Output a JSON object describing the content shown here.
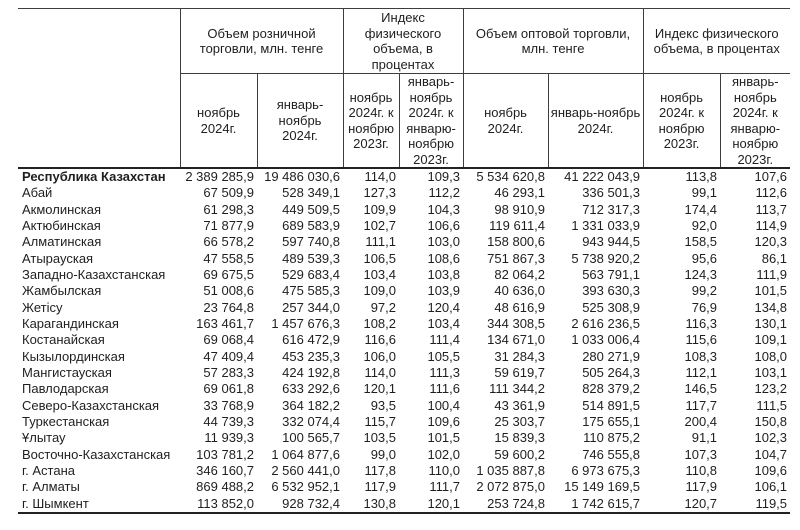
{
  "colors": {
    "text": "#1f1f1f",
    "border_thin": "#3d3d3d",
    "border_thick": "#222222",
    "background": "#ffffff"
  },
  "table": {
    "region_column_header": "",
    "groups": [
      {
        "label": "Объем розничной торговли, млн. тенге"
      },
      {
        "label": "Индекс физического объема, в процентах"
      },
      {
        "label": "Объем оптовой торговли, млн. тенге"
      },
      {
        "label": "Индекс физического объема, в процентах"
      }
    ],
    "subheaders": [
      "ноябрь 2024г.",
      "январь-ноябрь 2024г.",
      "ноябрь 2024г. к ноябрю 2023г.",
      "январь-ноябрь 2024г. к январю-ноябрю 2023г.",
      "ноябрь 2024г.",
      "январь-ноябрь 2024г.",
      "ноябрь 2024г. к ноябрю 2023г.",
      "январь-ноябрь 2024г. к январю-ноябрю 2023г."
    ],
    "rows": [
      {
        "region": "Республика Казахстан",
        "bold": true,
        "values": [
          "2 389 285,9",
          "19 486 030,6",
          "114,0",
          "109,3",
          "5 534 620,8",
          "41 222 043,9",
          "113,8",
          "107,6"
        ]
      },
      {
        "region": "Абай",
        "bold": false,
        "values": [
          "67 509,9",
          "528 349,1",
          "127,3",
          "112,2",
          "46 293,1",
          "336 501,3",
          "99,1",
          "112,6"
        ]
      },
      {
        "region": "Акмолинская",
        "bold": false,
        "values": [
          "61 298,3",
          "449 509,5",
          "109,9",
          "104,3",
          "98 910,9",
          "712 317,3",
          "174,4",
          "113,7"
        ]
      },
      {
        "region": "Актюбинская",
        "bold": false,
        "values": [
          "71 877,9",
          "689 583,9",
          "102,7",
          "106,6",
          "119 611,4",
          "1 331 033,9",
          "92,0",
          "114,9"
        ]
      },
      {
        "region": "Алматинская",
        "bold": false,
        "values": [
          "66 578,2",
          "597 740,8",
          "111,1",
          "103,0",
          "158 800,6",
          "943 944,5",
          "158,5",
          "120,3"
        ]
      },
      {
        "region": "Атырауская",
        "bold": false,
        "values": [
          "47 558,5",
          "489 539,3",
          "106,5",
          "108,6",
          "751 867,3",
          "5 738 920,2",
          "95,6",
          "86,1"
        ]
      },
      {
        "region": "Западно-Казахстанская",
        "bold": false,
        "values": [
          "69 675,5",
          "529 683,4",
          "103,4",
          "103,8",
          "82 064,2",
          "563 791,1",
          "124,3",
          "111,9"
        ]
      },
      {
        "region": "Жамбылская",
        "bold": false,
        "values": [
          "51 008,6",
          "475 585,3",
          "109,0",
          "103,9",
          "40 636,0",
          "393 630,3",
          "99,2",
          "101,5"
        ]
      },
      {
        "region": "Жетісу",
        "bold": false,
        "values": [
          "23 764,8",
          "257 344,0",
          "97,2",
          "120,4",
          "48 616,9",
          "525 308,9",
          "76,9",
          "134,8"
        ]
      },
      {
        "region": "Карагандинская",
        "bold": false,
        "values": [
          "163 461,7",
          "1 457 676,3",
          "108,2",
          "103,4",
          "344 308,5",
          "2 616 236,5",
          "116,3",
          "130,1"
        ]
      },
      {
        "region": "Костанайская",
        "bold": false,
        "values": [
          "69 068,4",
          "616 472,9",
          "116,6",
          "111,4",
          "134 671,0",
          "1 033 006,4",
          "115,6",
          "109,1"
        ]
      },
      {
        "region": "Кызылординская",
        "bold": false,
        "values": [
          "47 409,4",
          "453 235,3",
          "106,0",
          "105,5",
          "31 284,3",
          "280 271,9",
          "108,3",
          "108,0"
        ]
      },
      {
        "region": "Мангистауская",
        "bold": false,
        "values": [
          "57 283,3",
          "424 192,8",
          "114,0",
          "111,3",
          "59 619,7",
          "505 264,3",
          "112,1",
          "103,1"
        ]
      },
      {
        "region": "Павлодарская",
        "bold": false,
        "values": [
          "69 061,8",
          "633 292,6",
          "120,1",
          "111,6",
          "111 344,2",
          "828 379,2",
          "146,5",
          "123,2"
        ]
      },
      {
        "region": "Северо-Казахстанская",
        "bold": false,
        "values": [
          "33 768,9",
          "364 182,2",
          "93,5",
          "100,4",
          "43 361,9",
          "514 891,5",
          "117,7",
          "111,5"
        ]
      },
      {
        "region": "Туркестанская",
        "bold": false,
        "values": [
          "44 739,3",
          "332 074,4",
          "115,7",
          "109,6",
          "25 303,7",
          "175 655,1",
          "200,4",
          "150,8"
        ]
      },
      {
        "region": "Ұлытау",
        "bold": false,
        "values": [
          "11 939,3",
          "100 565,7",
          "103,5",
          "101,5",
          "15 839,3",
          "110 875,2",
          "91,1",
          "102,3"
        ]
      },
      {
        "region": "Восточно-Казахстанская",
        "bold": false,
        "values": [
          "103 781,2",
          "1 064 877,6",
          "99,0",
          "102,0",
          "59 600,2",
          "746 555,8",
          "107,3",
          "104,7"
        ]
      },
      {
        "region": "г. Астана",
        "bold": false,
        "values": [
          "346 160,7",
          "2 560 441,0",
          "117,8",
          "110,0",
          "1 035 887,8",
          "6 973 675,3",
          "110,8",
          "109,6"
        ]
      },
      {
        "region": "г. Алматы",
        "bold": false,
        "values": [
          "869 488,2",
          "6 532 952,1",
          "117,9",
          "111,7",
          "2 072 875,0",
          "15 149 169,5",
          "117,9",
          "106,1"
        ]
      },
      {
        "region": "г. Шымкент",
        "bold": false,
        "values": [
          "113 852,0",
          "928 732,4",
          "130,8",
          "120,1",
          "253 724,8",
          "1 742 615,7",
          "120,7",
          "119,5"
        ]
      }
    ]
  }
}
